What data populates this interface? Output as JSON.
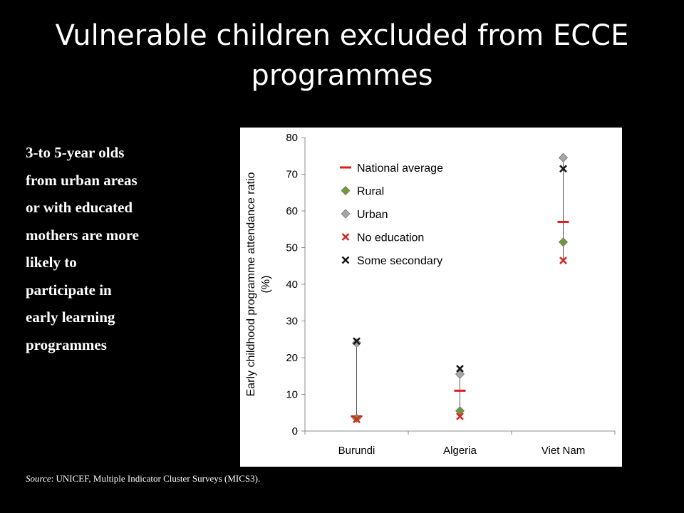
{
  "slide": {
    "title": "Vulnerable children excluded from ECCE programmes",
    "text_lines": [
      "3-to 5-year olds",
      "from urban areas",
      "or with educated",
      "mothers are more",
      "likely to",
      "participate in",
      "early learning",
      "programmes"
    ],
    "source_label": "Source",
    "source_text": ": UNICEF, Multiple Indicator Cluster Surveys (MICS3)."
  },
  "chart_data": {
    "type": "scatter",
    "categories": [
      "Burundi",
      "Algeria",
      "Viet Nam"
    ],
    "ylabel_lines": [
      "Early childhood programme attendance ratio",
      "(%)"
    ],
    "ylim": [
      0,
      80
    ],
    "yticks": [
      0,
      10,
      20,
      30,
      40,
      50,
      60,
      70,
      80
    ],
    "legend_position": "upper-left inside plot",
    "series": [
      {
        "name": "National average",
        "marker": "dash",
        "color": "#e31a1c",
        "values": [
          4,
          11,
          57
        ]
      },
      {
        "name": "Rural",
        "marker": "diamond",
        "color": "#6f9a3a",
        "values": [
          3.5,
          5.5,
          51.5
        ]
      },
      {
        "name": "Urban",
        "marker": "diamond",
        "color": "#a6a6a6",
        "values": [
          24,
          15.5,
          74.5
        ]
      },
      {
        "name": "No education",
        "marker": "x",
        "color": "#d62728",
        "values": [
          3.2,
          4,
          46.5
        ]
      },
      {
        "name": "Some secondary",
        "marker": "x",
        "color": "#1a1a1a",
        "values": [
          24.5,
          17,
          71.5
        ]
      }
    ],
    "range_line_color": "#555555"
  }
}
